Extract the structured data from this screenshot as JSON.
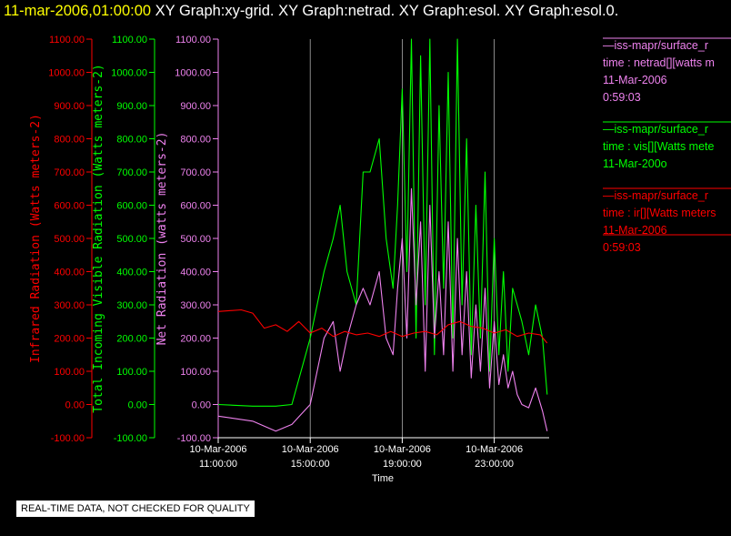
{
  "header": {
    "date": "11-mar-2006,01:00:00",
    "graphs": "XY Graph:xy-grid.  XY Graph:netrad.  XY Graph:esol.  XY Graph:esol.0."
  },
  "footer_note": "REAL-TIME DATA, NOT CHECKED FOR QUALITY",
  "colors": {
    "background": "#000000",
    "infrared": "#ff0000",
    "visible": "#00ff00",
    "net": "#ee82ee",
    "axes": "#ffffff",
    "grid": "#aaaaaa"
  },
  "legend": [
    {
      "name": "visible",
      "color": "#ee82ee",
      "lines": [
        "—iss-mapr/surface_r",
        "time : netrad[][watts m",
        "11-Mar-2006",
        "0:59:03"
      ]
    },
    {
      "name": "visible2",
      "color": "#00ff00",
      "lines": [
        "—iss-mapr/surface_r",
        "time : vis[][Watts mete",
        "11-Mar-200o"
      ]
    },
    {
      "name": "visible3",
      "color": "#ff0000",
      "lines": [
        "—iss-mapr/surface_r",
        "time : ir[][Watts meters",
        "11-Mar-2006",
        "0:59:03"
      ]
    }
  ],
  "chart_data": {
    "type": "line",
    "xlabel": "Time",
    "x_ticks": [
      {
        "hour": 11,
        "date": "10-Mar-2006",
        "time": "11:00:00"
      },
      {
        "hour": 15,
        "date": "10-Mar-2006",
        "time": "15:00:00"
      },
      {
        "hour": 19,
        "date": "10-Mar-2006",
        "time": "19:00:00"
      },
      {
        "hour": 23,
        "date": "10-Mar-2006",
        "time": "23:00:00"
      }
    ],
    "xlim_hours": [
      11.0,
      25.3
    ],
    "ylim": [
      -100,
      1100
    ],
    "y_ticks": [
      "1100.00",
      "1000.00",
      "900.00",
      "800.00",
      "700.00",
      "600.00",
      "500.00",
      "400.00",
      "300.00",
      "200.00",
      "100.00",
      "0.00",
      "-100.00"
    ],
    "axes": [
      {
        "id": "ir",
        "label": "Infrared Radiation (Watts meters-2)",
        "color": "#ff0000"
      },
      {
        "id": "vis",
        "label": "Total Incoming Visible Radiation (Watts meters-2)",
        "color": "#00ff00"
      },
      {
        "id": "net",
        "label": "Net Radiation (watts meters-2)",
        "color": "#ee82ee"
      }
    ],
    "grid": "vertical lines at major x ticks",
    "series": [
      {
        "axis": "vis",
        "color": "#00ff00",
        "x": [
          11.0,
          12.5,
          13.5,
          14.2,
          14.6,
          15.0,
          15.3,
          15.6,
          16.0,
          16.3,
          16.6,
          17.0,
          17.3,
          17.6,
          18.0,
          18.3,
          18.6,
          18.8,
          19.0,
          19.2,
          19.4,
          19.6,
          19.8,
          20.0,
          20.2,
          20.4,
          20.6,
          20.8,
          21.0,
          21.2,
          21.4,
          21.6,
          21.8,
          22.0,
          22.2,
          22.4,
          22.6,
          22.8,
          23.0,
          23.2,
          23.4,
          23.6,
          23.8,
          24.0,
          24.2,
          24.5,
          24.8,
          25.1,
          25.3
        ],
        "y": [
          0,
          -5,
          -5,
          0,
          100,
          200,
          300,
          400,
          500,
          600,
          400,
          300,
          700,
          700,
          800,
          500,
          350,
          600,
          950,
          400,
          1100,
          200,
          1050,
          300,
          1100,
          150,
          900,
          350,
          1000,
          200,
          1100,
          300,
          800,
          150,
          600,
          200,
          700,
          100,
          500,
          150,
          400,
          100,
          350,
          300,
          250,
          150,
          300,
          200,
          30
        ]
      },
      {
        "axis": "net",
        "color": "#ee82ee",
        "x": [
          11.0,
          12.5,
          13.5,
          14.2,
          14.6,
          15.0,
          15.3,
          15.6,
          16.0,
          16.3,
          16.6,
          17.0,
          17.3,
          17.6,
          18.0,
          18.3,
          18.6,
          18.8,
          19.0,
          19.2,
          19.4,
          19.6,
          19.8,
          20.0,
          20.2,
          20.4,
          20.6,
          20.8,
          21.0,
          21.2,
          21.4,
          21.6,
          21.8,
          22.0,
          22.2,
          22.4,
          22.6,
          22.8,
          23.0,
          23.2,
          23.4,
          23.6,
          23.8,
          24.0,
          24.2,
          24.5,
          24.8,
          25.1,
          25.3
        ],
        "y": [
          -35,
          -50,
          -80,
          -60,
          -30,
          0,
          100,
          200,
          250,
          100,
          200,
          300,
          350,
          300,
          400,
          200,
          150,
          350,
          500,
          200,
          650,
          300,
          550,
          100,
          600,
          200,
          400,
          150,
          550,
          100,
          500,
          150,
          400,
          80,
          300,
          100,
          350,
          50,
          250,
          60,
          150,
          50,
          100,
          30,
          0,
          -10,
          50,
          -20,
          -80
        ]
      },
      {
        "axis": "ir",
        "color": "#ff0000",
        "x": [
          11.0,
          12.0,
          12.5,
          13.0,
          13.5,
          14.0,
          14.5,
          15.0,
          15.5,
          16.0,
          16.5,
          17.0,
          17.5,
          18.0,
          18.5,
          19.0,
          19.5,
          20.0,
          20.5,
          21.0,
          21.5,
          22.0,
          22.5,
          23.0,
          23.5,
          24.0,
          24.5,
          25.0,
          25.3
        ],
        "y": [
          280,
          285,
          275,
          230,
          240,
          220,
          250,
          215,
          230,
          205,
          220,
          210,
          215,
          205,
          220,
          205,
          215,
          220,
          210,
          240,
          250,
          235,
          230,
          215,
          225,
          205,
          215,
          210,
          185
        ]
      }
    ]
  }
}
